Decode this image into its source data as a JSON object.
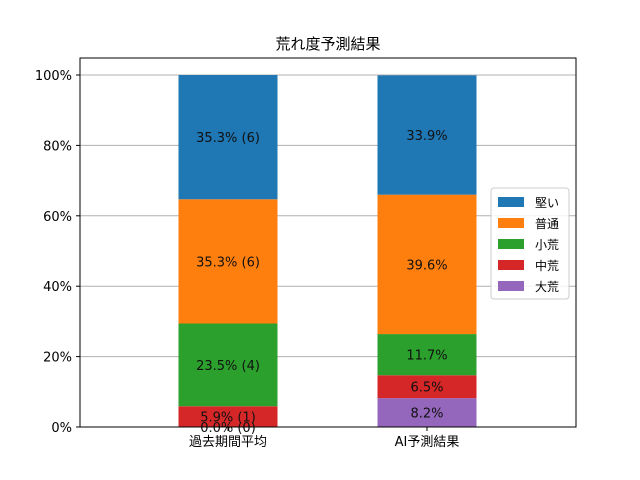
{
  "chart_data": {
    "type": "bar",
    "stacked": true,
    "title": "荒れ度予測結果",
    "xlabel": "",
    "ylabel": "",
    "ylim": [
      0,
      100
    ],
    "y_ticks": [
      "0%",
      "20%",
      "40%",
      "60%",
      "80%",
      "100%"
    ],
    "grid": "horizontal",
    "legend_position": "right",
    "categories": [
      "過去期間平均",
      "AI予測結果"
    ],
    "series": [
      {
        "name": "大荒",
        "color": "#9467bd",
        "values": [
          0.0,
          8.2
        ],
        "labels": [
          "0.0% (0)",
          "8.2%"
        ]
      },
      {
        "name": "中荒",
        "color": "#d62728",
        "values": [
          5.9,
          6.5
        ],
        "labels": [
          "5.9% (1)",
          "6.5%"
        ]
      },
      {
        "name": "小荒",
        "color": "#2ca02c",
        "values": [
          23.5,
          11.7
        ],
        "labels": [
          "23.5% (4)",
          "11.7%"
        ]
      },
      {
        "name": "普通",
        "color": "#ff7f0e",
        "values": [
          35.3,
          39.6
        ],
        "labels": [
          "35.3% (6)",
          "39.6%"
        ]
      },
      {
        "name": "堅い",
        "color": "#1f77b4",
        "values": [
          35.3,
          33.9
        ],
        "labels": [
          "35.3% (6)",
          "33.9%"
        ]
      }
    ],
    "legend_order": [
      "堅い",
      "普通",
      "小荒",
      "中荒",
      "大荒"
    ]
  }
}
